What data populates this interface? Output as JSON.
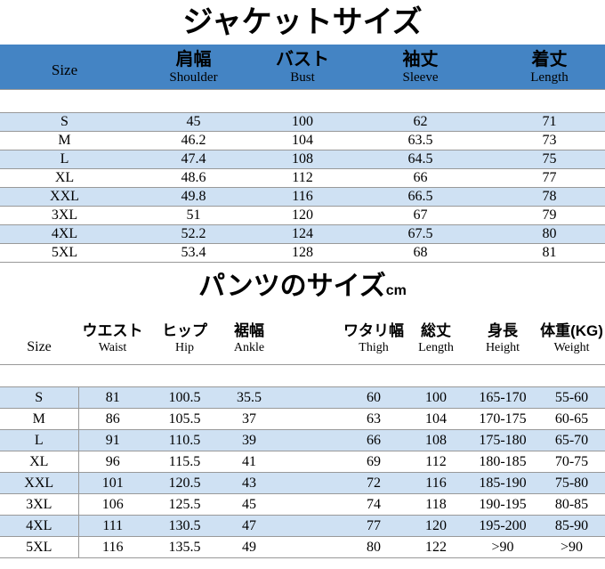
{
  "jacket": {
    "title": "ジャケットサイズ",
    "columns": [
      {
        "jp": "Size",
        "en": ""
      },
      {
        "jp": "肩幅",
        "en": "Shoulder"
      },
      {
        "jp": "バスト",
        "en": "Bust"
      },
      {
        "jp": "袖丈",
        "en": "Sleeve"
      },
      {
        "jp": "着丈",
        "en": "Length"
      }
    ],
    "rows": [
      [
        "S",
        "45",
        "100",
        "62",
        "71"
      ],
      [
        "M",
        "46.2",
        "104",
        "63.5",
        "73"
      ],
      [
        "L",
        "47.4",
        "108",
        "64.5",
        "75"
      ],
      [
        "XL",
        "48.6",
        "112",
        "66",
        "77"
      ],
      [
        "XXL",
        "49.8",
        "116",
        "66.5",
        "78"
      ],
      [
        "3XL",
        "51",
        "120",
        "67",
        "79"
      ],
      [
        "4XL",
        "52.2",
        "124",
        "67.5",
        "80"
      ],
      [
        "5XL",
        "53.4",
        "128",
        "68",
        "81"
      ]
    ]
  },
  "pants": {
    "title": "パンツのサイズ",
    "title_unit": "cm",
    "columns": [
      {
        "jp": "Size",
        "en": ""
      },
      {
        "jp": "ウエスト",
        "en": "Waist"
      },
      {
        "jp": "ヒップ",
        "en": "Hip"
      },
      {
        "jp": "裾幅",
        "en": "Ankle"
      },
      {
        "jp": "",
        "en": ""
      },
      {
        "jp": "ワタリ幅",
        "en": "Thigh"
      },
      {
        "jp": "総丈",
        "en": "Length"
      },
      {
        "jp": "身長",
        "en": "Height"
      },
      {
        "jp": "体重(KG)",
        "en": "Weight"
      }
    ],
    "rows": [
      [
        "S",
        "81",
        "100.5",
        "35.5",
        "",
        "60",
        "100",
        "165-170",
        "55-60"
      ],
      [
        "M",
        "86",
        "105.5",
        "37",
        "",
        "63",
        "104",
        "170-175",
        "60-65"
      ],
      [
        "L",
        "91",
        "110.5",
        "39",
        "",
        "66",
        "108",
        "175-180",
        "65-70"
      ],
      [
        "XL",
        "96",
        "115.5",
        "41",
        "",
        "69",
        "112",
        "180-185",
        "70-75"
      ],
      [
        "XXL",
        "101",
        "120.5",
        "43",
        "",
        "72",
        "116",
        "185-190",
        "75-80"
      ],
      [
        "3XL",
        "106",
        "125.5",
        "45",
        "",
        "74",
        "118",
        "190-195",
        "80-85"
      ],
      [
        "4XL",
        "111",
        "130.5",
        "47",
        "",
        "77",
        "120",
        "195-200",
        "85-90"
      ],
      [
        "5XL",
        "116",
        "135.5",
        "49",
        "",
        "80",
        "122",
        ">90",
        ">90"
      ]
    ]
  },
  "colors": {
    "header_blue": "#4484c4",
    "row_light_blue": "#cfe1f3",
    "grid_line": "#999999"
  }
}
